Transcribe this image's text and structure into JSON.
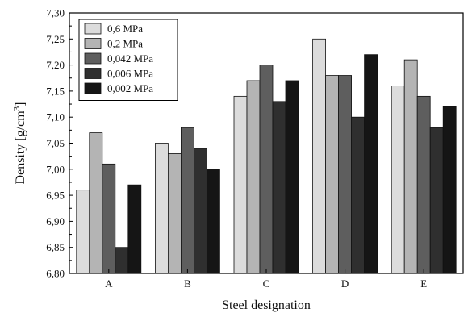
{
  "chart_data": {
    "type": "bar",
    "xlabel": "Steel designation",
    "ylabel": "Density [g/cm",
    "ylabel_superscript": "3",
    "ylabel_suffix": "]",
    "categories": [
      "A",
      "B",
      "C",
      "D",
      "E"
    ],
    "ylim": [
      6.8,
      7.3
    ],
    "ytick_step": 0.05,
    "ytick_labels": [
      "6,80",
      "6,85",
      "6,90",
      "6,95",
      "7,00",
      "7,05",
      "7,10",
      "7,15",
      "7,20",
      "7,25",
      "7,30"
    ],
    "legend_position": "top-left",
    "grid": false,
    "series": [
      {
        "name": "0,6 MPa",
        "color": "#dcdcdc",
        "values": [
          6.96,
          7.05,
          7.14,
          7.25,
          7.16
        ]
      },
      {
        "name": "0,2 MPa",
        "color": "#b4b4b4",
        "values": [
          7.07,
          7.03,
          7.17,
          7.18,
          7.21
        ]
      },
      {
        "name": "0,042 MPa",
        "color": "#5e5e5e",
        "values": [
          7.01,
          7.08,
          7.2,
          7.18,
          7.14
        ]
      },
      {
        "name": "0,006 MPa",
        "color": "#2f2f2f",
        "values": [
          6.85,
          7.04,
          7.13,
          7.1,
          7.08
        ]
      },
      {
        "name": "0,002 MPa",
        "color": "#151515",
        "values": [
          6.97,
          7.0,
          7.17,
          7.22,
          7.12
        ]
      }
    ]
  }
}
